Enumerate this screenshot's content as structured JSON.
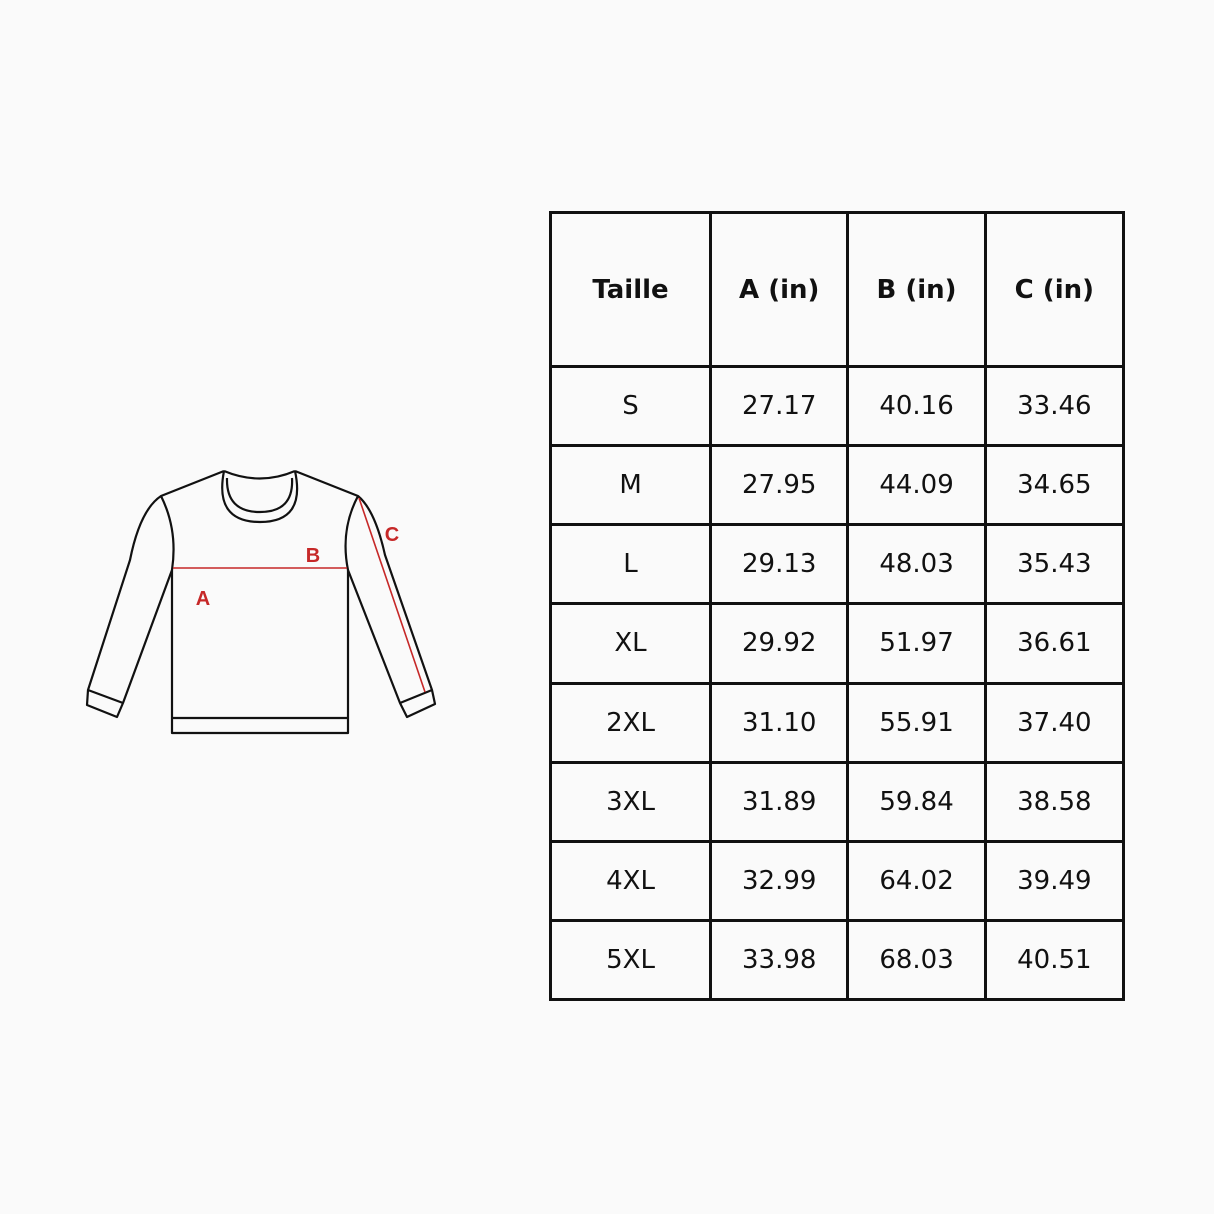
{
  "diagram": {
    "labels": {
      "a": "A",
      "b": "B",
      "c": "C"
    },
    "measure_color": "#c62828",
    "outline_color": "#111111"
  },
  "table": {
    "headers": [
      "Taille",
      "A (in)",
      "B (in)",
      "C (in)"
    ],
    "rows": [
      [
        "S",
        "27.17",
        "40.16",
        "33.46"
      ],
      [
        "M",
        "27.95",
        "44.09",
        "34.65"
      ],
      [
        "L",
        "29.13",
        "48.03",
        "35.43"
      ],
      [
        "XL",
        "29.92",
        "51.97",
        "36.61"
      ],
      [
        "2XL",
        "31.10",
        "55.91",
        "37.40"
      ],
      [
        "3XL",
        "31.89",
        "59.84",
        "38.58"
      ],
      [
        "4XL",
        "32.99",
        "64.02",
        "39.49"
      ],
      [
        "5XL",
        "33.98",
        "68.03",
        "40.51"
      ]
    ]
  }
}
